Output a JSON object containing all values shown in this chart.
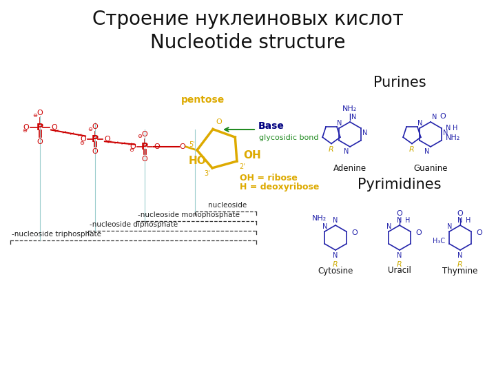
{
  "title_line1": "Строение нуклеиновых кислот",
  "title_line2": "Nucleotide structure",
  "bg_color": "#ffffff",
  "red": "#cc0000",
  "gold": "#ddaa00",
  "green_c": "#228B22",
  "blue": "#000080",
  "dark": "#111111",
  "pb": "#2222aa",
  "gold_r": "#ccaa00",
  "purines_label": "Purines",
  "pyrimidines_label": "Pyrimidines",
  "adenine_label": "Adenine",
  "guanine_label": "Guanine",
  "cytosine_label": "Cytosine",
  "uracil_label": "Uracil",
  "thymine_label": "Thymine",
  "pentose_label": "pentose",
  "base_label": "Base",
  "glycosidic_label": "glycosidic bond",
  "ribose_label": "OH = ribose",
  "deoxyribose_label": "H = deoxyribose",
  "nucleoside_label": "nucleoside",
  "mono_label": "nucleoside monophosphate",
  "di_label": "nucleoside diphosphate",
  "tri_label": "nucleoside triphosphate"
}
